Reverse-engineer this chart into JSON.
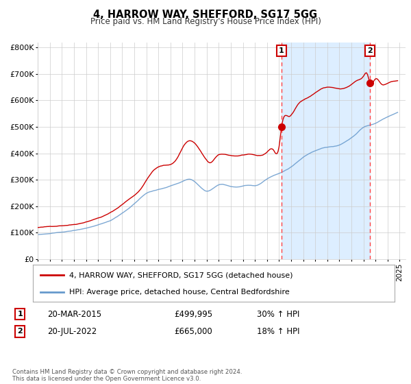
{
  "title": "4, HARROW WAY, SHEFFORD, SG17 5GG",
  "subtitle": "Price paid vs. HM Land Registry's House Price Index (HPI)",
  "ylim": [
    0,
    820000
  ],
  "yticks": [
    0,
    100000,
    200000,
    300000,
    400000,
    500000,
    600000,
    700000,
    800000
  ],
  "ytick_labels": [
    "£0",
    "£100K",
    "£200K",
    "£300K",
    "£400K",
    "£500K",
    "£600K",
    "£700K",
    "£800K"
  ],
  "xlim_start": 1995.0,
  "xlim_end": 2025.5,
  "red_line_color": "#cc0000",
  "blue_line_color": "#6699cc",
  "shade_color": "#ddeeff",
  "marker1_x": 2015.21,
  "marker1_y": 499995,
  "marker2_x": 2022.54,
  "marker2_y": 665000,
  "vline1_x": 2015.21,
  "vline2_x": 2022.54,
  "legend_label_red": "4, HARROW WAY, SHEFFORD, SG17 5GG (detached house)",
  "legend_label_blue": "HPI: Average price, detached house, Central Bedfordshire",
  "table_row1": [
    "1",
    "20-MAR-2015",
    "£499,995",
    "30% ↑ HPI"
  ],
  "table_row2": [
    "2",
    "20-JUL-2022",
    "£665,000",
    "18% ↑ HPI"
  ],
  "footer": "Contains HM Land Registry data © Crown copyright and database right 2024.\nThis data is licensed under the Open Government Licence v3.0.",
  "background_color": "#ffffff",
  "grid_color": "#cccccc"
}
